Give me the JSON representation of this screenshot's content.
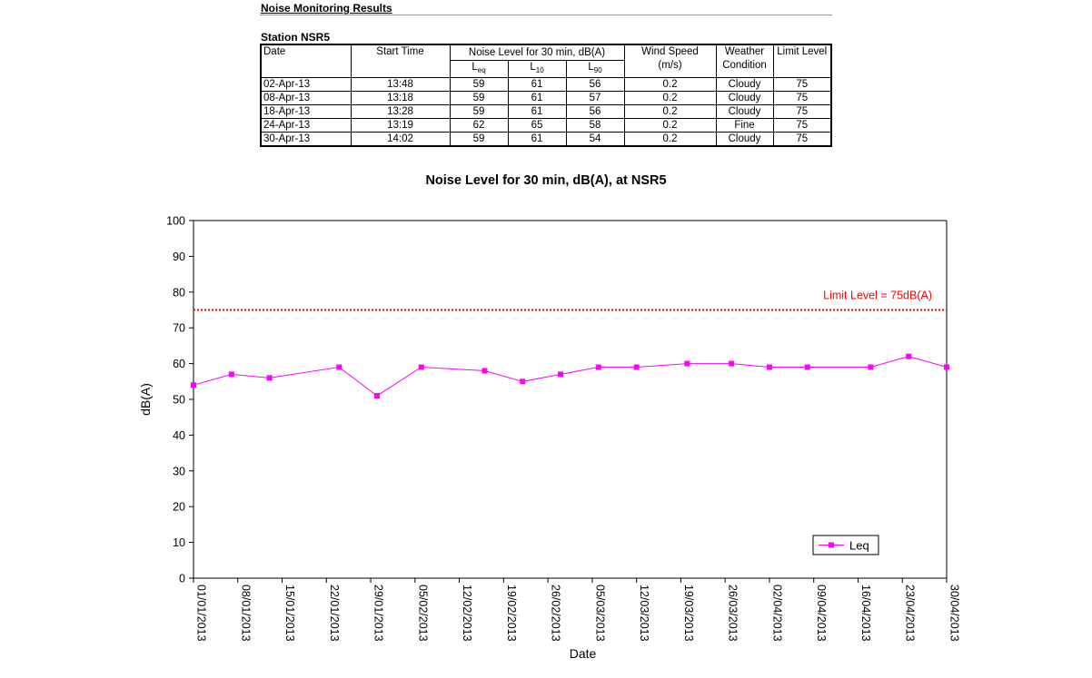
{
  "report_title": "Noise Monitoring Results",
  "station_title": "Station NSR5",
  "table": {
    "headers": {
      "date": "Date",
      "start_time": "Start Time",
      "noise_level": "Noise Level for 30 min, dB(A)",
      "leq_main": "L",
      "leq_sub": "eq",
      "l10_main": "L",
      "l10_sub": "10",
      "l90_main": "L",
      "l90_sub": "90",
      "wind_speed": "Wind Speed",
      "wind_unit": "(m/s)",
      "weather_1": "Weather",
      "weather_2": "Condition",
      "limit_level": "Limit Level"
    },
    "rows": [
      {
        "date": "02-Apr-13",
        "start": "13:48",
        "leq": "59",
        "l10": "61",
        "l90": "56",
        "wind": "0.2",
        "weather": "Cloudy",
        "limit": "75"
      },
      {
        "date": "08-Apr-13",
        "start": "13:18",
        "leq": "59",
        "l10": "61",
        "l90": "57",
        "wind": "0.2",
        "weather": "Cloudy",
        "limit": "75"
      },
      {
        "date": "18-Apr-13",
        "start": "13:28",
        "leq": "59",
        "l10": "61",
        "l90": "56",
        "wind": "0.2",
        "weather": "Cloudy",
        "limit": "75"
      },
      {
        "date": "24-Apr-13",
        "start": "13:19",
        "leq": "62",
        "l10": "65",
        "l90": "58",
        "wind": "0.2",
        "weather": "Fine",
        "limit": "75"
      },
      {
        "date": "30-Apr-13",
        "start": "14:02",
        "leq": "59",
        "l10": "61",
        "l90": "54",
        "wind": "0.2",
        "weather": "Cloudy",
        "limit": "75"
      }
    ]
  },
  "chart_data": {
    "type": "line",
    "title": "Noise Level for 30 min, dB(A), at NSR5",
    "xlabel": "Date",
    "ylabel": "dB(A)",
    "ylim": [
      0,
      100
    ],
    "yticks": [
      0,
      10,
      20,
      30,
      40,
      50,
      60,
      70,
      80,
      90,
      100
    ],
    "xlim": [
      "2013-01-01",
      "2013-04-30"
    ],
    "xticks": [
      "01/01/2013",
      "08/01/2013",
      "15/01/2013",
      "22/01/2013",
      "29/01/2013",
      "05/02/2013",
      "12/02/2013",
      "19/02/2013",
      "26/02/2013",
      "05/03/2013",
      "12/03/2013",
      "19/03/2013",
      "26/03/2013",
      "02/04/2013",
      "09/04/2013",
      "16/04/2013",
      "23/04/2013",
      "30/04/2013"
    ],
    "grid": false,
    "legend": "bottom-right",
    "series": [
      {
        "name": "Leq",
        "color": "#ff00ff",
        "marker": "square",
        "x": [
          "2013-01-01",
          "2013-01-07",
          "2013-01-13",
          "2013-01-24",
          "2013-01-30",
          "2013-02-06",
          "2013-02-16",
          "2013-02-22",
          "2013-02-28",
          "2013-03-06",
          "2013-03-12",
          "2013-03-20",
          "2013-03-27",
          "2013-04-02",
          "2013-04-08",
          "2013-04-18",
          "2013-04-24",
          "2013-04-30"
        ],
        "values": [
          54,
          57,
          56,
          59,
          51,
          59,
          58,
          55,
          57,
          59,
          59,
          60,
          60,
          59,
          59,
          59,
          62,
          59
        ]
      }
    ],
    "reference_line": {
      "value": 75,
      "label": "Limit Level = 75dB(A)",
      "color": "#ff0000",
      "style": "dotted"
    },
    "axis_color": "#000000",
    "text_color": "#000000"
  }
}
